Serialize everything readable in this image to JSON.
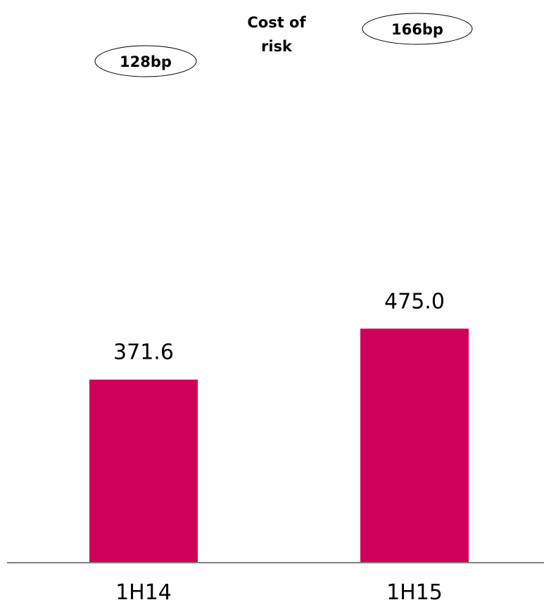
{
  "chart_data": {
    "type": "bar",
    "title": "Cost of risk",
    "title_lines": [
      "Cost of",
      "risk"
    ],
    "categories": [
      "1H14",
      "1H15"
    ],
    "values": [
      371.6,
      475.0
    ],
    "value_labels": [
      "371.6",
      "475.0"
    ],
    "annotations": [
      "128bp",
      "166bp"
    ],
    "bar_color": "#D0005A",
    "axis_color": "#808080",
    "grid": false,
    "ylim": [
      0,
      620
    ]
  }
}
